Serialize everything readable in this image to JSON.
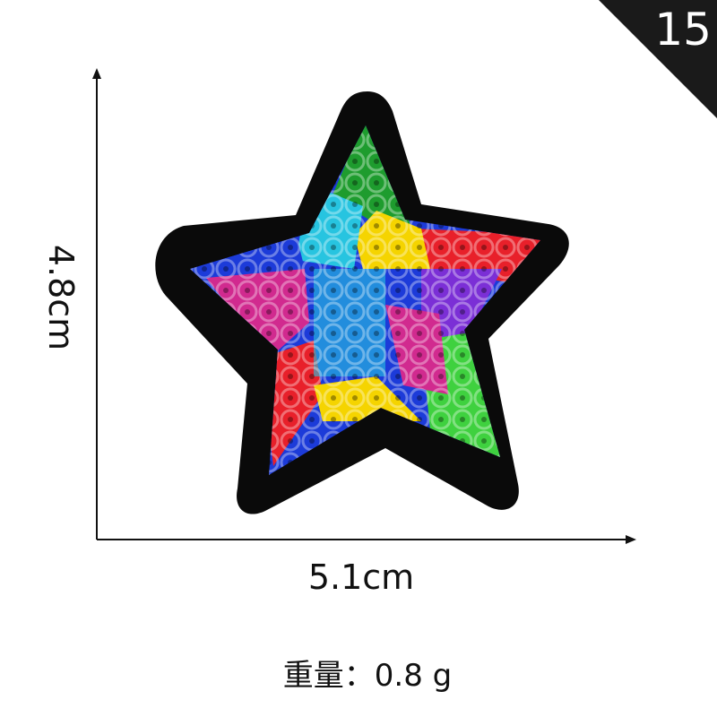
{
  "badge": {
    "number": "15"
  },
  "dimensions": {
    "height": "4.8cm",
    "width": "5.1cm"
  },
  "weight": "重量：0.8 g",
  "colors": {
    "background": "#ffffff",
    "badge": "#1a1a1a",
    "patch_border": "#0a0a0a",
    "sequins": [
      "#1e9c2e",
      "#27c4e0",
      "#f5d400",
      "#ff8a00",
      "#e8202a",
      "#d12a8f",
      "#7b2fd6",
      "#1c3bd9",
      "#3fd13f"
    ]
  },
  "icons": {
    "star": "star-icon"
  }
}
